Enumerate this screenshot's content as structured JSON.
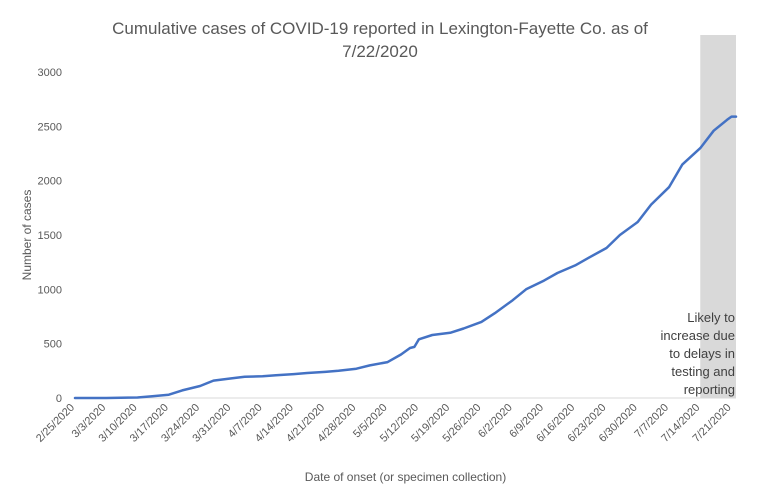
{
  "chart_data": {
    "type": "line",
    "title_line1": "Cumulative cases of COVID-19 reported in Lexington-Fayette Co.  as of",
    "title_line2": "7/22/2020",
    "xlabel": "Date of onset (or specimen collection)",
    "ylabel": "Number  of cases",
    "ylim": [
      0,
      3000
    ],
    "yticks": [
      0,
      500,
      1000,
      1500,
      2000,
      2500,
      3000
    ],
    "x_ticks": [
      "2/25/2020",
      "3/3/2020",
      "3/10/2020",
      "3/17/2020",
      "3/24/2020",
      "3/31/2020",
      "4/7/2020",
      "4/14/2020",
      "4/21/2020",
      "4/28/2020",
      "5/5/2020",
      "5/12/2020",
      "5/19/2020",
      "5/26/2020",
      "6/2/2020",
      "6/9/2020",
      "6/16/2020",
      "6/23/2020",
      "6/30/2020",
      "7/7/2020",
      "7/14/2020",
      "7/21/2020"
    ],
    "x_range": [
      "2/25/2020",
      "7/22/2020"
    ],
    "grid": false,
    "line_color": "#4472C4",
    "shade_color": "#D9D9D9",
    "shaded_region": [
      "7/14/2020",
      "7/22/2020"
    ],
    "annotation_lines": [
      "Likely to",
      "increase due",
      "to delays in",
      "testing and",
      "reporting"
    ],
    "series": [
      {
        "x": [
          "2/25/2020",
          "3/3/2020",
          "3/10/2020",
          "3/13/2020",
          "3/17/2020",
          "3/20/2020",
          "3/24/2020",
          "3/27/2020",
          "3/31/2020",
          "4/3/2020",
          "4/7/2020",
          "4/10/2020",
          "4/14/2020",
          "4/17/2020",
          "4/21/2020",
          "4/24/2020",
          "4/28/2020",
          "5/1/2020",
          "5/5/2020",
          "5/8/2020",
          "5/10/2020",
          "5/11/2020",
          "5/12/2020",
          "5/15/2020",
          "5/19/2020",
          "5/22/2020",
          "5/26/2020",
          "5/29/2020",
          "6/2/2020",
          "6/5/2020",
          "6/9/2020",
          "6/12/2020",
          "6/16/2020",
          "6/19/2020",
          "6/23/2020",
          "6/26/2020",
          "6/30/2020",
          "7/3/2020",
          "7/7/2020",
          "7/10/2020",
          "7/14/2020",
          "7/17/2020",
          "7/20/2020",
          "7/21/2020",
          "7/22/2020"
        ],
        "values": [
          0,
          0,
          5,
          15,
          30,
          70,
          110,
          160,
          180,
          195,
          200,
          210,
          220,
          230,
          240,
          250,
          270,
          300,
          330,
          400,
          460,
          470,
          540,
          580,
          600,
          640,
          700,
          780,
          900,
          1000,
          1080,
          1150,
          1220,
          1290,
          1380,
          1500,
          1620,
          1780,
          1940,
          2150,
          2300,
          2460,
          2560,
          2590,
          2590
        ]
      }
    ]
  }
}
